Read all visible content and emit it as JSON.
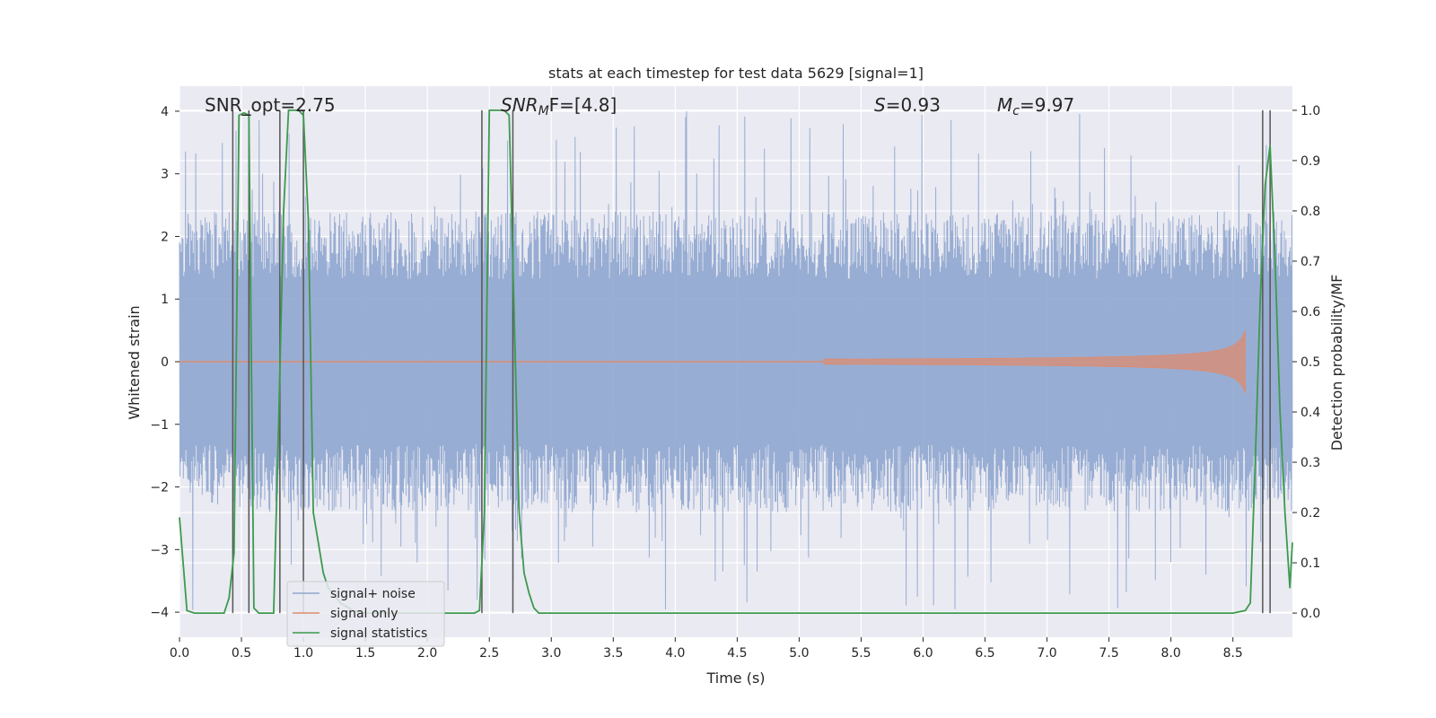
{
  "chart_data": {
    "type": "line",
    "title": "stats at each timestep for test data 5629 [signal=1]",
    "xlabel": "Time (s)",
    "ylabel": "Whitened strain",
    "ylabel_right": "Detection probability/MF",
    "xlim": [
      0.0,
      8.98
    ],
    "ylim": [
      -4.4,
      4.4
    ],
    "ylim_right": [
      -0.048,
      1.048
    ],
    "x_ticks": [
      "0.0",
      "0.5",
      "1.0",
      "1.5",
      "2.0",
      "2.5",
      "3.0",
      "3.5",
      "4.0",
      "4.5",
      "5.0",
      "5.5",
      "6.0",
      "6.5",
      "7.0",
      "7.5",
      "8.0",
      "8.5"
    ],
    "y_ticks": [
      "4",
      "3",
      "2",
      "1",
      "0",
      "−1",
      "−2",
      "−3",
      "−4"
    ],
    "y_ticks_right": [
      "1.0",
      "0.9",
      "0.8",
      "0.7",
      "0.6",
      "0.5",
      "0.4",
      "0.3",
      "0.2",
      "0.1",
      "0.0"
    ],
    "grid": true,
    "legend_position": "lower-left",
    "annotations": [
      {
        "id": "snr_opt",
        "text": "SNR_opt=2.75"
      },
      {
        "id": "snr_mf",
        "text": "SNR",
        "sub": "M",
        "suffix": "F=[4.8]"
      },
      {
        "id": "overlap",
        "text": "S",
        "suffix": "=0.93"
      },
      {
        "id": "chirp_mass",
        "text": "M",
        "sub": "c",
        "suffix": "=9.97"
      }
    ],
    "series": [
      {
        "name": "signal+ noise",
        "color": "#8fa6cf",
        "envelope": {
          "typical_amplitude": 2.4,
          "peak_amplitude": 4.0
        }
      },
      {
        "name": "signal only",
        "color": "#dd8c6f",
        "chirp": {
          "start_time": 5.2,
          "merger_time": 8.6,
          "peak_amplitude": 0.5
        }
      },
      {
        "name": "signal statistics",
        "color": "#3d9a4d",
        "axis": "right",
        "x": [
          0.0,
          0.06,
          0.12,
          0.18,
          0.24,
          0.3,
          0.36,
          0.4,
          0.44,
          0.48,
          0.52,
          0.56,
          0.6,
          0.64,
          0.68,
          0.72,
          0.76,
          0.8,
          0.84,
          0.88,
          0.92,
          0.96,
          1.0,
          1.04,
          1.08,
          1.12,
          1.16,
          1.2,
          1.3,
          1.4,
          1.5,
          1.6,
          1.7,
          1.8,
          1.9,
          2.0,
          2.1,
          2.2,
          2.3,
          2.38,
          2.42,
          2.46,
          2.5,
          2.54,
          2.58,
          2.62,
          2.66,
          2.7,
          2.74,
          2.78,
          2.82,
          2.86,
          2.9,
          2.95,
          3.0,
          3.5,
          4.0,
          4.5,
          5.0,
          5.5,
          6.0,
          6.5,
          7.0,
          7.5,
          8.0,
          8.5,
          8.6,
          8.64,
          8.68,
          8.72,
          8.76,
          8.8,
          8.84,
          8.88,
          8.92,
          8.96,
          8.98
        ],
        "values": [
          0.19,
          0.005,
          0.0,
          0.0,
          0.0,
          0.0,
          0.0,
          0.03,
          0.12,
          0.99,
          0.995,
          0.99,
          0.01,
          0.0,
          0.0,
          0.0,
          0.0,
          0.38,
          0.8,
          1.0,
          1.0,
          1.0,
          0.99,
          0.78,
          0.2,
          0.14,
          0.08,
          0.05,
          0.02,
          0.005,
          0.0,
          0.0,
          0.0,
          0.0,
          0.0,
          0.0,
          0.0,
          0.0,
          0.0,
          0.0,
          0.005,
          0.2,
          1.0,
          1.0,
          1.0,
          1.0,
          0.99,
          0.6,
          0.2,
          0.08,
          0.04,
          0.01,
          0.0,
          0.0,
          0.0,
          0.0,
          0.0,
          0.0,
          0.0,
          0.0,
          0.0,
          0.0,
          0.0,
          0.0,
          0.0,
          0.0,
          0.005,
          0.02,
          0.3,
          0.62,
          0.85,
          0.93,
          0.7,
          0.4,
          0.2,
          0.05,
          0.14
        ]
      }
    ],
    "vertical_markers": [
      0.43,
      0.56,
      0.81,
      1.0,
      2.44,
      2.69,
      8.74,
      8.8
    ]
  }
}
